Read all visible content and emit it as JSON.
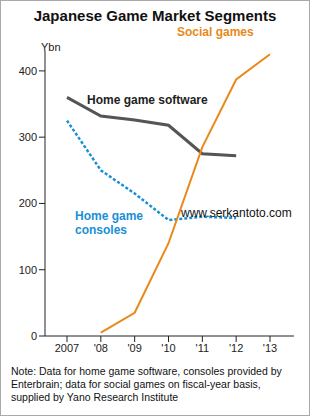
{
  "chart_data": {
    "type": "line",
    "title": "Japanese Game Market Segments",
    "y_label": "Ybn",
    "categories": [
      "2007",
      "'08",
      "'09",
      "'10",
      "'11",
      "'12",
      "'13"
    ],
    "series": [
      {
        "name": "Home game software",
        "color": "#555555",
        "line_style": "solid",
        "values": [
          360,
          332,
          326,
          318,
          275,
          272,
          null
        ]
      },
      {
        "name": "Home game consoles",
        "color": "#1a8fd6",
        "line_style": "dotted",
        "values": [
          325,
          250,
          215,
          175,
          180,
          178,
          null
        ]
      },
      {
        "name": "Social games",
        "color": "#e8891a",
        "line_style": "solid",
        "values": [
          null,
          5,
          35,
          140,
          285,
          387,
          425
        ]
      }
    ],
    "ylim": [
      0,
      430
    ],
    "yticks": [
      0,
      100,
      200,
      300,
      400
    ],
    "grid": false,
    "annotations": [
      "www.serkantoto.com",
      "Note: Data for home game software, consoles provided by Enterbrain; data for social games on fiscal-year basis, supplied by Yano Research Institute"
    ]
  }
}
